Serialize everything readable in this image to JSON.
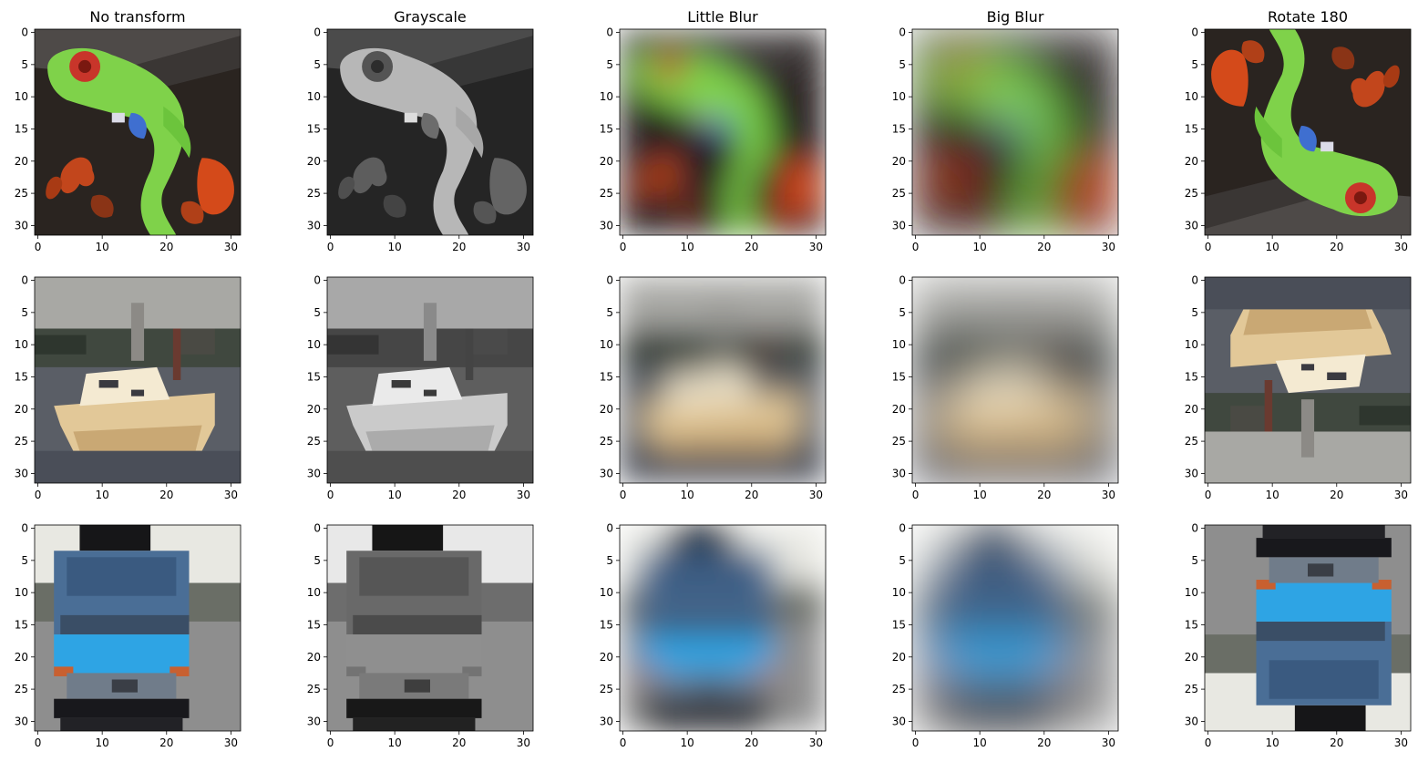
{
  "figure": {
    "column_titles": [
      "No transform",
      "Grayscale",
      "Little Blur",
      "Big Blur",
      "Rotate 180"
    ],
    "x_ticks": [
      "0",
      "10",
      "20",
      "30"
    ],
    "y_ticks": [
      "0",
      "5",
      "10",
      "15",
      "20",
      "25",
      "30"
    ],
    "rows": [
      {
        "subject": "tree frog",
        "panels": [
          {
            "transform": "No transform",
            "icon": "frog-image"
          },
          {
            "transform": "Grayscale",
            "icon": "frog-image"
          },
          {
            "transform": "Little Blur",
            "icon": "frog-image"
          },
          {
            "transform": "Big Blur",
            "icon": "frog-image"
          },
          {
            "transform": "Rotate 180",
            "icon": "frog-image"
          }
        ]
      },
      {
        "subject": "boat",
        "panels": [
          {
            "transform": "No transform",
            "icon": "boat-image"
          },
          {
            "transform": "Grayscale",
            "icon": "boat-image"
          },
          {
            "transform": "Little Blur",
            "icon": "boat-image"
          },
          {
            "transform": "Big Blur",
            "icon": "boat-image"
          },
          {
            "transform": "Rotate 180",
            "icon": "boat-image"
          }
        ]
      },
      {
        "subject": "truck",
        "panels": [
          {
            "transform": "No transform",
            "icon": "truck-image"
          },
          {
            "transform": "Grayscale",
            "icon": "truck-image"
          },
          {
            "transform": "Little Blur",
            "icon": "truck-image"
          },
          {
            "transform": "Big Blur",
            "icon": "truck-image"
          },
          {
            "transform": "Rotate 180",
            "icon": "truck-image"
          }
        ]
      }
    ]
  }
}
